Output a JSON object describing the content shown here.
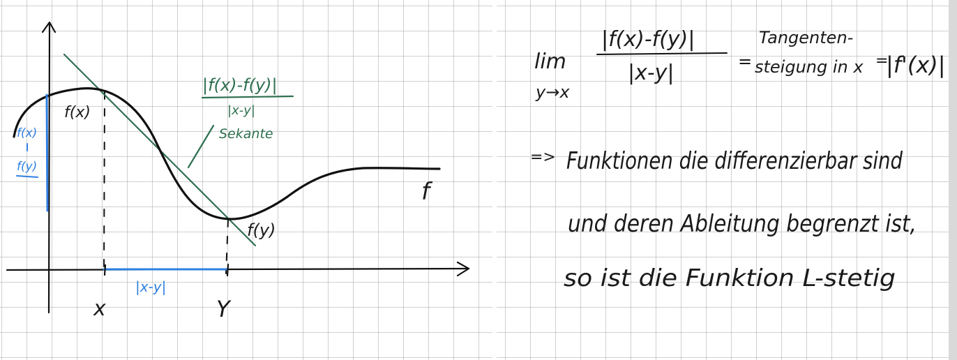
{
  "sketch": {
    "colors": {
      "ink": "#111111",
      "secant_green": "#2e6f4f",
      "measure_blue": "#2f7fe0",
      "grid": "#c8c8c8"
    },
    "labels": {
      "x_point": "x",
      "y_point": "Y",
      "f_of_x": "f(x)",
      "f_of_y": "f(y)",
      "function_name": "f",
      "distance": "|x-y|",
      "difference_top": "f(x)",
      "difference_minus": "-",
      "difference_bottom": "f(y)",
      "quotient_numerator": "|f(x)-f(y)|",
      "quotient_denominator": "|x-y|",
      "secant": "Sekante"
    }
  },
  "notes": {
    "limit_word": "lim",
    "limit_sub": "y→x",
    "frac_numerator": "|f(x)-f(y)|",
    "frac_denominator": "|x-y|",
    "equals_1": "=",
    "tangent_line1": "Tangenten-",
    "tangent_line2": "steigung in x",
    "equals_2": "=",
    "derivative": "|f'(x)|",
    "implies": "=>",
    "line1": "Funktionen die differenzierbar sind",
    "line2": "und deren Ableitung begrenzt ist,",
    "line3": "so ist die Funktion L-stetig"
  }
}
